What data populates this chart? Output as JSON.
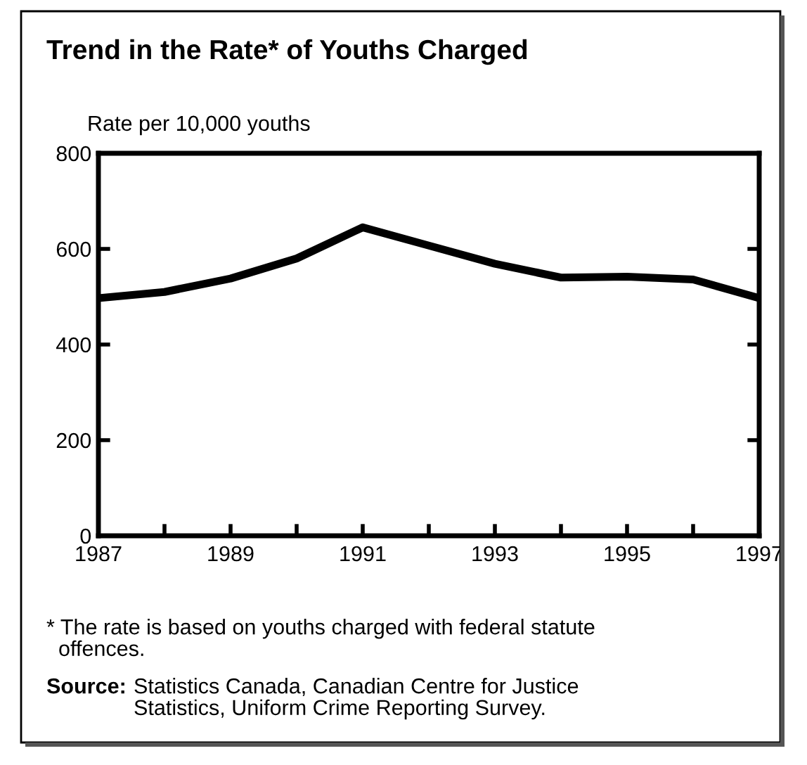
{
  "chart_data": {
    "type": "line",
    "title": "Trend in the Rate* of Youths Charged",
    "ylabel": "Rate per 10,000 youths",
    "x": [
      1987,
      1988,
      1989,
      1990,
      1991,
      1992,
      1993,
      1994,
      1995,
      1996,
      1997
    ],
    "series": [
      {
        "color": "#000000",
        "values": [
          497,
          510,
          538,
          580,
          645,
          607,
          569,
          540,
          542,
          536,
          497
        ]
      }
    ],
    "xlim": [
      1987,
      1997
    ],
    "ylim": [
      0,
      800
    ],
    "xticks": [
      1987,
      {
        "value": 1988,
        "label": null
      },
      1989,
      {
        "value": 1990,
        "label": null
      },
      1991,
      {
        "value": 1992,
        "label": null
      },
      1993,
      {
        "value": 1994,
        "label": null
      },
      1995,
      {
        "value": 1996,
        "label": null
      },
      1997
    ],
    "yticks": [
      0,
      200,
      400,
      600,
      800
    ],
    "grid": false,
    "legend": false,
    "marker": "none",
    "line_style": "solid",
    "annotations": [
      "* The rate is based on youths charged with federal statute\n  offences.",
      "Source:",
      "Statistics Canada, Canadian Centre for Justice\nStatistics, Uniform Crime Reporting Survey."
    ]
  }
}
